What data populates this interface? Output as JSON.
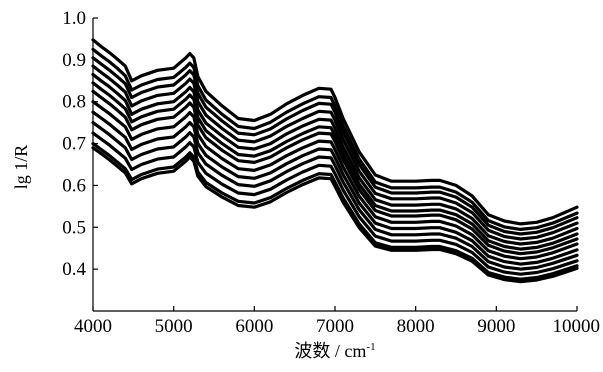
{
  "chart_data": {
    "type": "line",
    "title": "",
    "xlabel": "波数 / cm",
    "xlabel_sup": "-1",
    "ylabel": "lg 1/R",
    "xlim": [
      4000,
      10000
    ],
    "ylim": [
      0.3,
      1.0
    ],
    "x_ticks": [
      "4000",
      "5000",
      "6000",
      "7000",
      "8000",
      "9000",
      "10000"
    ],
    "y_ticks": [
      "0.4",
      "0.5",
      "0.6",
      "0.7",
      "0.8",
      "0.9",
      "1.0"
    ],
    "grid": false,
    "legend": "none",
    "line_color": "#000000",
    "x": [
      4000,
      4100,
      4200,
      4300,
      4400,
      4480,
      4600,
      4800,
      5000,
      5150,
      5200,
      5250,
      5300,
      5400,
      5600,
      5800,
      6000,
      6200,
      6400,
      6600,
      6800,
      6950,
      7000,
      7100,
      7300,
      7500,
      7700,
      8000,
      8200,
      8300,
      8500,
      8700,
      8900,
      9100,
      9300,
      9500,
      9700,
      10000
    ],
    "series": [
      {
        "values": [
          0.948,
          0.932,
          0.918,
          0.902,
          0.885,
          0.85,
          0.862,
          0.875,
          0.88,
          0.905,
          0.915,
          0.905,
          0.86,
          0.825,
          0.79,
          0.76,
          0.755,
          0.77,
          0.795,
          0.815,
          0.832,
          0.83,
          0.81,
          0.76,
          0.68,
          0.625,
          0.61,
          0.61,
          0.612,
          0.612,
          0.6,
          0.575,
          0.53,
          0.515,
          0.508,
          0.512,
          0.523,
          0.548
        ]
      },
      {
        "values": [
          0.925,
          0.91,
          0.896,
          0.88,
          0.862,
          0.828,
          0.84,
          0.853,
          0.858,
          0.882,
          0.892,
          0.882,
          0.838,
          0.804,
          0.77,
          0.741,
          0.736,
          0.751,
          0.775,
          0.795,
          0.812,
          0.81,
          0.79,
          0.742,
          0.663,
          0.608,
          0.594,
          0.594,
          0.596,
          0.596,
          0.584,
          0.56,
          0.516,
          0.501,
          0.495,
          0.499,
          0.51,
          0.534
        ]
      },
      {
        "values": [
          0.905,
          0.89,
          0.876,
          0.86,
          0.843,
          0.81,
          0.822,
          0.835,
          0.84,
          0.864,
          0.874,
          0.864,
          0.82,
          0.787,
          0.754,
          0.725,
          0.721,
          0.735,
          0.759,
          0.779,
          0.796,
          0.794,
          0.775,
          0.728,
          0.65,
          0.596,
          0.582,
          0.582,
          0.584,
          0.584,
          0.572,
          0.548,
          0.505,
          0.49,
          0.484,
          0.488,
          0.499,
          0.523
        ]
      },
      {
        "values": [
          0.885,
          0.87,
          0.856,
          0.84,
          0.823,
          0.79,
          0.802,
          0.815,
          0.82,
          0.844,
          0.854,
          0.844,
          0.8,
          0.768,
          0.736,
          0.708,
          0.704,
          0.718,
          0.741,
          0.76,
          0.777,
          0.775,
          0.756,
          0.71,
          0.634,
          0.581,
          0.568,
          0.568,
          0.57,
          0.57,
          0.558,
          0.535,
          0.493,
          0.478,
          0.472,
          0.476,
          0.487,
          0.51
        ]
      },
      {
        "values": [
          0.865,
          0.85,
          0.836,
          0.82,
          0.803,
          0.77,
          0.782,
          0.795,
          0.8,
          0.824,
          0.834,
          0.824,
          0.78,
          0.749,
          0.718,
          0.691,
          0.687,
          0.7,
          0.723,
          0.742,
          0.758,
          0.756,
          0.737,
          0.692,
          0.618,
          0.566,
          0.553,
          0.553,
          0.555,
          0.555,
          0.544,
          0.521,
          0.48,
          0.466,
          0.46,
          0.464,
          0.474,
          0.497
        ]
      },
      {
        "values": [
          0.845,
          0.83,
          0.816,
          0.8,
          0.783,
          0.752,
          0.764,
          0.777,
          0.782,
          0.806,
          0.816,
          0.806,
          0.762,
          0.731,
          0.7,
          0.674,
          0.67,
          0.683,
          0.705,
          0.724,
          0.74,
          0.738,
          0.72,
          0.676,
          0.603,
          0.552,
          0.539,
          0.539,
          0.541,
          0.541,
          0.53,
          0.508,
          0.468,
          0.454,
          0.448,
          0.452,
          0.462,
          0.484
        ]
      },
      {
        "values": [
          0.825,
          0.81,
          0.796,
          0.78,
          0.763,
          0.733,
          0.745,
          0.758,
          0.763,
          0.787,
          0.797,
          0.787,
          0.744,
          0.714,
          0.684,
          0.659,
          0.655,
          0.668,
          0.69,
          0.709,
          0.725,
          0.723,
          0.705,
          0.662,
          0.59,
          0.54,
          0.527,
          0.527,
          0.529,
          0.529,
          0.518,
          0.496,
          0.457,
          0.443,
          0.437,
          0.441,
          0.451,
          0.472
        ]
      },
      {
        "values": [
          0.8,
          0.786,
          0.772,
          0.756,
          0.74,
          0.71,
          0.722,
          0.735,
          0.74,
          0.764,
          0.774,
          0.764,
          0.722,
          0.693,
          0.664,
          0.64,
          0.636,
          0.649,
          0.671,
          0.69,
          0.706,
          0.704,
          0.686,
          0.644,
          0.574,
          0.525,
          0.512,
          0.512,
          0.514,
          0.514,
          0.503,
          0.482,
          0.444,
          0.431,
          0.425,
          0.429,
          0.439,
          0.46
        ]
      },
      {
        "values": [
          0.775,
          0.761,
          0.747,
          0.731,
          0.715,
          0.686,
          0.698,
          0.711,
          0.716,
          0.74,
          0.75,
          0.74,
          0.7,
          0.672,
          0.644,
          0.621,
          0.617,
          0.63,
          0.652,
          0.671,
          0.687,
          0.685,
          0.667,
          0.626,
          0.558,
          0.51,
          0.497,
          0.497,
          0.499,
          0.499,
          0.488,
          0.468,
          0.431,
          0.418,
          0.412,
          0.416,
          0.426,
          0.446
        ]
      },
      {
        "values": [
          0.75,
          0.736,
          0.722,
          0.706,
          0.69,
          0.662,
          0.674,
          0.687,
          0.692,
          0.716,
          0.726,
          0.716,
          0.678,
          0.651,
          0.624,
          0.602,
          0.598,
          0.611,
          0.633,
          0.652,
          0.668,
          0.666,
          0.648,
          0.608,
          0.542,
          0.495,
          0.482,
          0.482,
          0.484,
          0.484,
          0.474,
          0.454,
          0.418,
          0.405,
          0.4,
          0.404,
          0.414,
          0.433
        ]
      },
      {
        "values": [
          0.725,
          0.711,
          0.697,
          0.681,
          0.665,
          0.638,
          0.65,
          0.663,
          0.668,
          0.692,
          0.702,
          0.692,
          0.655,
          0.629,
          0.603,
          0.582,
          0.578,
          0.591,
          0.613,
          0.632,
          0.648,
          0.646,
          0.628,
          0.589,
          0.525,
          0.479,
          0.467,
          0.467,
          0.469,
          0.469,
          0.459,
          0.44,
          0.405,
          0.393,
          0.388,
          0.392,
          0.401,
          0.42
        ]
      },
      {
        "values": [
          0.7,
          0.686,
          0.672,
          0.656,
          0.64,
          0.614,
          0.626,
          0.639,
          0.644,
          0.668,
          0.678,
          0.668,
          0.632,
          0.607,
          0.582,
          0.562,
          0.558,
          0.571,
          0.593,
          0.612,
          0.628,
          0.626,
          0.608,
          0.57,
          0.508,
          0.463,
          0.452,
          0.452,
          0.454,
          0.454,
          0.444,
          0.426,
          0.392,
          0.381,
          0.376,
          0.38,
          0.389,
          0.408
        ]
      },
      {
        "values": [
          0.69,
          0.676,
          0.662,
          0.646,
          0.63,
          0.604,
          0.616,
          0.629,
          0.634,
          0.658,
          0.668,
          0.658,
          0.622,
          0.597,
          0.572,
          0.552,
          0.548,
          0.561,
          0.583,
          0.602,
          0.618,
          0.616,
          0.598,
          0.56,
          0.499,
          0.455,
          0.445,
          0.445,
          0.447,
          0.447,
          0.437,
          0.419,
          0.386,
          0.375,
          0.37,
          0.374,
          0.383,
          0.402
        ]
      }
    ]
  }
}
